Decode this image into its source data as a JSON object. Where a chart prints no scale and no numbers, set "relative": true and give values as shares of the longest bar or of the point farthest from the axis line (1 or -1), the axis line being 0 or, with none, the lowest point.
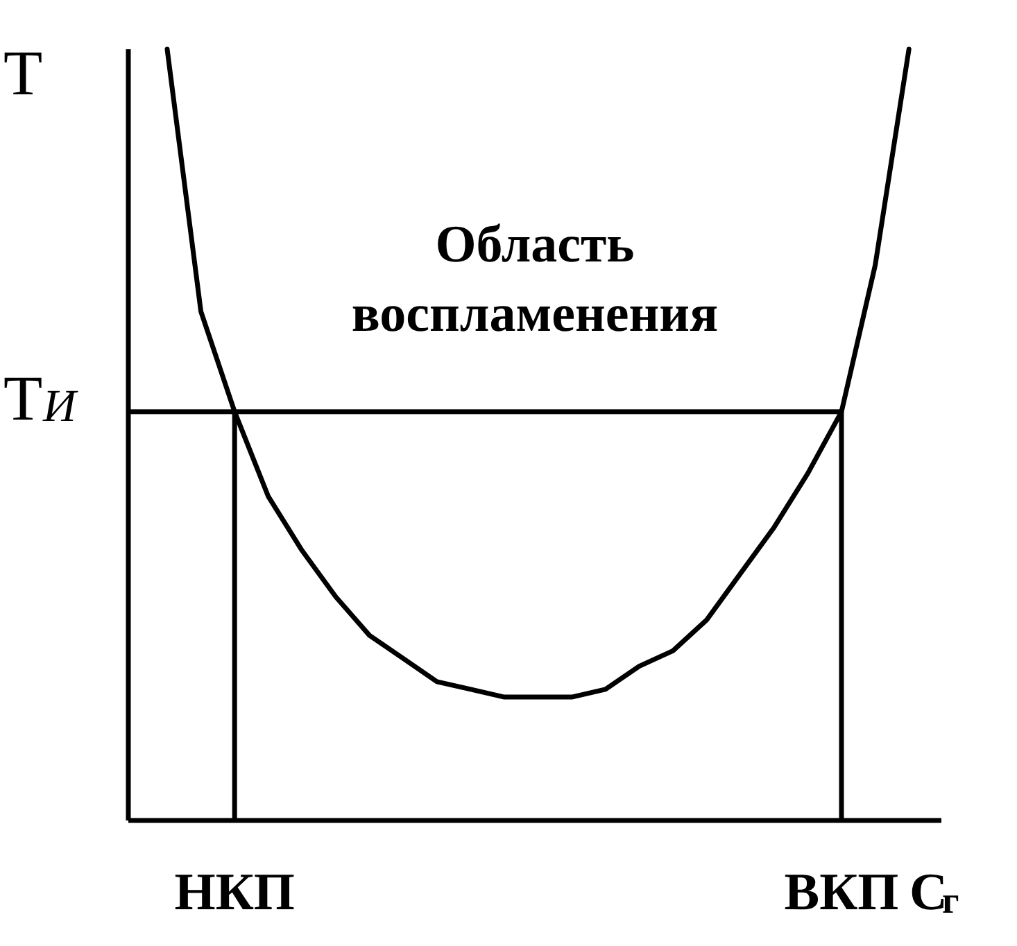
{
  "chart_data": {
    "type": "line",
    "relative": true,
    "color": "#000000",
    "line_style": "solid",
    "categories": [
      null,
      null,
      "НКП",
      null,
      null,
      null,
      null,
      null,
      null,
      null,
      null,
      null,
      null,
      null,
      null,
      null,
      null,
      null,
      null,
      null,
      "ВКП",
      null,
      null
    ],
    "values": [
      1.0,
      0.66,
      0.53,
      0.42,
      0.35,
      0.29,
      0.24,
      0.21,
      0.18,
      0.17,
      0.16,
      0.16,
      0.16,
      0.17,
      0.2,
      0.22,
      0.26,
      0.32,
      0.38,
      0.45,
      0.53,
      0.72,
      1.0
    ],
    "ylabel": "Т",
    "xlabel": "С$_{г}$",
    "ref_lines": [
      {
        "axis": "y",
        "value": 0.53,
        "label": "Т$_{И}$"
      },
      {
        "axis": "x",
        "value": "НКП"
      },
      {
        "axis": "x",
        "value": "ВКП"
      }
    ],
    "annotations": [
      "Область воспламенения"
    ]
  }
}
